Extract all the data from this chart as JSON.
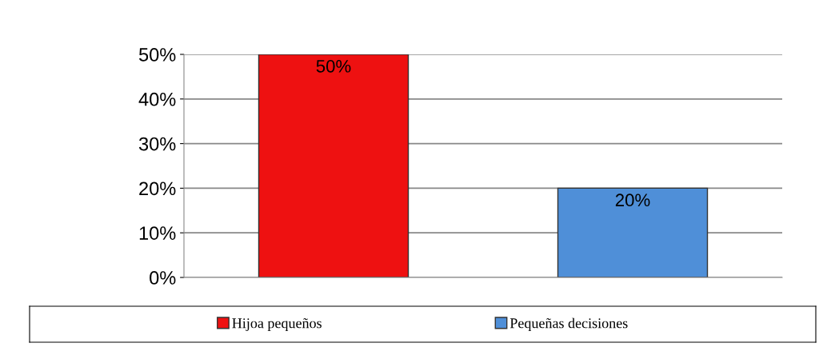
{
  "chart_data": {
    "type": "bar",
    "categories": [
      null,
      null
    ],
    "series": [
      {
        "name": "Hijoa pequeños",
        "color": "#ee1111",
        "values": [
          50,
          null
        ],
        "value_labels": [
          "50%",
          null
        ]
      },
      {
        "name": "Pequeñas decisiones",
        "color": "#4f8fd8",
        "values": [
          null,
          20
        ],
        "value_labels": [
          null,
          "20%"
        ]
      }
    ],
    "ylim": [
      0,
      50
    ],
    "yticks": [
      {
        "value": 0,
        "label": "0%"
      },
      {
        "value": 10,
        "label": "10%"
      },
      {
        "value": 20,
        "label": "20%"
      },
      {
        "value": 30,
        "label": "30%"
      },
      {
        "value": 40,
        "label": "40%"
      },
      {
        "value": 50,
        "label": "50%"
      }
    ],
    "grid": "y",
    "legend": "bottom"
  }
}
